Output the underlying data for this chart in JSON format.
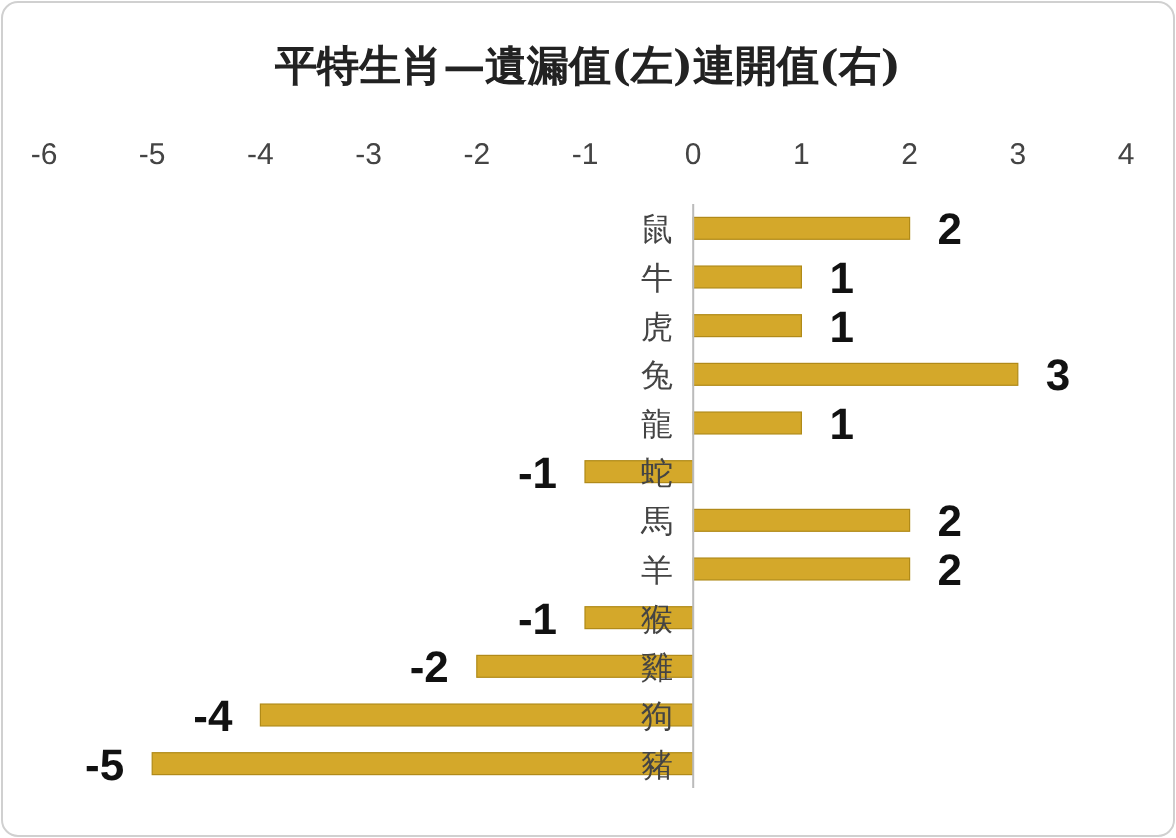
{
  "chart_data": {
    "type": "bar",
    "orientation": "horizontal",
    "title": "平特生肖—遺漏值(左)連開值(右)",
    "categories": [
      "鼠",
      "牛",
      "虎",
      "兔",
      "龍",
      "蛇",
      "馬",
      "羊",
      "猴",
      "雞",
      "狗",
      "豬"
    ],
    "values": [
      2,
      1,
      1,
      3,
      1,
      -1,
      2,
      2,
      -1,
      -2,
      -4,
      -5
    ],
    "color": "#d4a82a",
    "xlim": [
      -6,
      4
    ],
    "xticks": [
      -6,
      -5,
      -4,
      -3,
      -2,
      -1,
      0,
      1,
      2,
      3,
      4
    ],
    "data_labels": true
  }
}
